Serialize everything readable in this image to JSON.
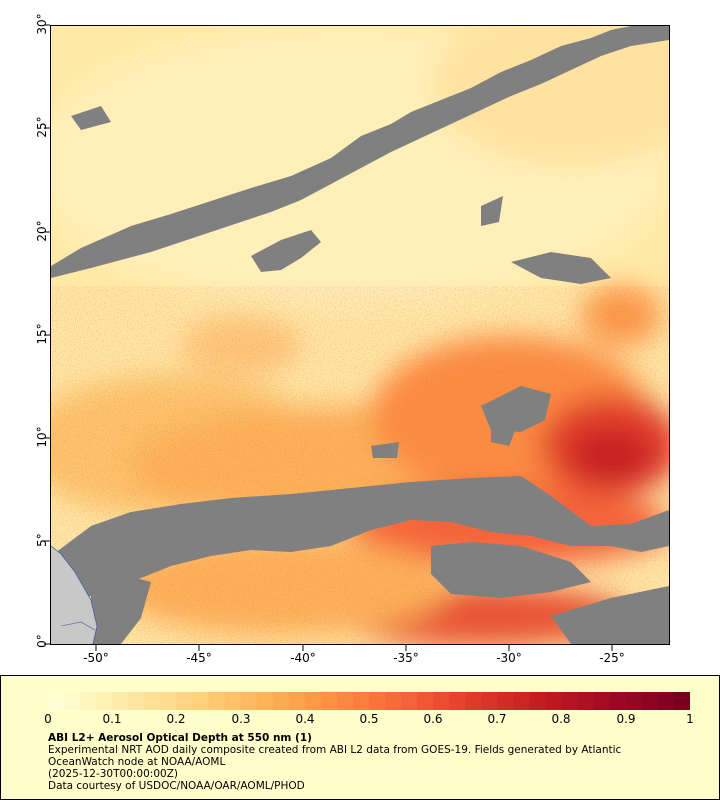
{
  "map": {
    "y_ticks": [
      "30°",
      "25°",
      "20°",
      "15°",
      "10°",
      "5°",
      "0°"
    ],
    "x_ticks": [
      "-50°",
      "-45°",
      "-40°",
      "-35°",
      "-30°",
      "-25°"
    ],
    "colors": {
      "no_data": "#808080",
      "land": "#c8c8c8",
      "scale": [
        "#ffffd4",
        "#ffe9a6",
        "#fed27d",
        "#fdb35a",
        "#fc8e42",
        "#f4663a",
        "#e03a2a",
        "#c31c20",
        "#9c0a25",
        "#7a0020"
      ]
    }
  },
  "legend": {
    "ticks": [
      "0",
      "0.1",
      "0.2",
      "0.3",
      "0.4",
      "0.5",
      "0.6",
      "0.7",
      "0.8",
      "0.9",
      "1"
    ],
    "title": "ABI L2+ Aerosol Optical Depth at 550 nm (1)",
    "line1": "Experimental NRT AOD daily composite created from ABI L2 data from GOES-19. Fields generated by Atlantic OceanWatch node at NOAA/AOML",
    "line2": "(2025-12-30T00:00:00Z)",
    "line3": "Data courtesy of USDOC/NOAA/OAR/AOML/PHOD"
  }
}
